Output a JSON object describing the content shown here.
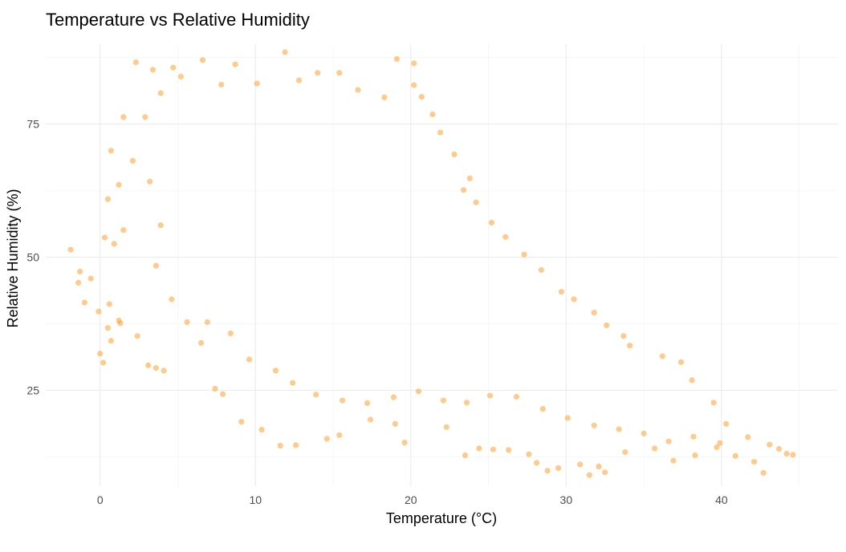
{
  "chart_data": {
    "type": "scatter",
    "title": "Temperature vs Relative Humidity",
    "xlabel": "Temperature (°C)",
    "ylabel": "Relative Humidity (%)",
    "xlim": [
      -3.5,
      47.5
    ],
    "ylim": [
      7,
      90
    ],
    "x_ticks": [
      0,
      10,
      20,
      30,
      40
    ],
    "y_ticks": [
      25,
      50,
      75
    ],
    "grid": true,
    "point_color": "#FF8C00",
    "point_opacity": 0.45,
    "series": [
      {
        "points": [
          [
            -1.9,
            51.4
          ],
          [
            -1.3,
            47.3
          ],
          [
            -1.4,
            45.2
          ],
          [
            -1.0,
            41.5
          ],
          [
            -0.6,
            46.0
          ],
          [
            -0.1,
            39.8
          ],
          [
            0.0,
            31.9
          ],
          [
            0.2,
            30.2
          ],
          [
            0.5,
            36.7
          ],
          [
            0.6,
            41.2
          ],
          [
            0.7,
            34.3
          ],
          [
            1.2,
            38.1
          ],
          [
            1.3,
            37.6
          ],
          [
            0.3,
            53.7
          ],
          [
            0.9,
            52.5
          ],
          [
            1.5,
            55.1
          ],
          [
            0.5,
            60.9
          ],
          [
            1.2,
            63.6
          ],
          [
            0.7,
            70.0
          ],
          [
            1.5,
            76.3
          ],
          [
            2.3,
            86.6
          ],
          [
            3.4,
            85.2
          ],
          [
            4.7,
            85.6
          ],
          [
            6.6,
            87.0
          ],
          [
            8.7,
            86.2
          ],
          [
            11.9,
            88.5
          ],
          [
            14.0,
            84.6
          ],
          [
            19.1,
            87.2
          ],
          [
            20.2,
            86.4
          ],
          [
            2.4,
            35.2
          ],
          [
            3.1,
            29.7
          ],
          [
            3.6,
            29.2
          ],
          [
            4.1,
            28.7
          ],
          [
            6.5,
            33.9
          ],
          [
            7.4,
            25.3
          ],
          [
            7.9,
            24.3
          ],
          [
            9.1,
            19.1
          ],
          [
            10.4,
            17.6
          ],
          [
            11.6,
            14.6
          ],
          [
            12.6,
            14.7
          ],
          [
            14.6,
            15.9
          ],
          [
            15.4,
            16.6
          ],
          [
            17.4,
            19.5
          ],
          [
            19.0,
            18.7
          ],
          [
            19.6,
            15.2
          ],
          [
            22.3,
            18.1
          ],
          [
            23.5,
            12.8
          ],
          [
            24.4,
            14.1
          ],
          [
            25.3,
            13.9
          ],
          [
            26.3,
            13.8
          ],
          [
            27.6,
            13.0
          ],
          [
            28.1,
            11.4
          ],
          [
            28.8,
            9.9
          ],
          [
            29.5,
            10.4
          ],
          [
            30.9,
            11.1
          ],
          [
            31.5,
            9.1
          ],
          [
            32.1,
            10.7
          ],
          [
            32.5,
            9.6
          ],
          [
            33.8,
            13.4
          ],
          [
            35.7,
            14.1
          ],
          [
            36.9,
            11.8
          ],
          [
            38.3,
            12.8
          ],
          [
            39.7,
            14.3
          ],
          [
            40.9,
            12.7
          ],
          [
            42.1,
            11.6
          ],
          [
            42.7,
            9.5
          ],
          [
            43.7,
            14.0
          ],
          [
            44.6,
            12.9
          ],
          [
            44.2,
            13.1
          ],
          [
            43.1,
            14.8
          ],
          [
            41.7,
            16.2
          ],
          [
            40.3,
            18.7
          ],
          [
            39.5,
            22.7
          ],
          [
            38.1,
            26.9
          ],
          [
            37.4,
            30.3
          ],
          [
            36.2,
            31.4
          ],
          [
            34.1,
            33.4
          ],
          [
            33.7,
            35.2
          ],
          [
            32.6,
            37.2
          ],
          [
            31.8,
            39.6
          ],
          [
            30.5,
            42.1
          ],
          [
            29.7,
            43.5
          ],
          [
            28.4,
            47.6
          ],
          [
            27.3,
            50.5
          ],
          [
            26.1,
            53.8
          ],
          [
            25.2,
            56.5
          ],
          [
            24.2,
            60.3
          ],
          [
            23.4,
            62.6
          ],
          [
            23.8,
            64.8
          ],
          [
            22.8,
            69.3
          ],
          [
            21.9,
            73.4
          ],
          [
            21.4,
            76.8
          ],
          [
            20.7,
            80.1
          ],
          [
            20.2,
            82.3
          ],
          [
            18.3,
            80.0
          ],
          [
            16.6,
            81.4
          ],
          [
            15.4,
            84.6
          ],
          [
            12.8,
            83.2
          ],
          [
            10.1,
            82.6
          ],
          [
            7.8,
            82.4
          ],
          [
            5.2,
            83.9
          ],
          [
            3.9,
            80.8
          ],
          [
            2.9,
            76.3
          ],
          [
            2.1,
            68.1
          ],
          [
            3.2,
            64.2
          ],
          [
            3.9,
            56.0
          ],
          [
            3.6,
            48.4
          ],
          [
            4.6,
            42.1
          ],
          [
            5.6,
            37.8
          ],
          [
            6.9,
            37.8
          ],
          [
            8.4,
            35.7
          ],
          [
            9.6,
            30.8
          ],
          [
            11.3,
            28.7
          ],
          [
            12.4,
            26.4
          ],
          [
            13.9,
            24.2
          ],
          [
            15.6,
            23.1
          ],
          [
            17.2,
            22.6
          ],
          [
            18.9,
            23.7
          ],
          [
            20.5,
            24.8
          ],
          [
            22.1,
            23.1
          ],
          [
            23.6,
            22.7
          ],
          [
            25.1,
            24.0
          ],
          [
            26.8,
            23.8
          ],
          [
            28.5,
            21.5
          ],
          [
            30.1,
            19.8
          ],
          [
            31.8,
            18.4
          ],
          [
            33.4,
            17.7
          ],
          [
            35.0,
            16.9
          ],
          [
            36.6,
            15.4
          ],
          [
            38.2,
            16.3
          ],
          [
            39.9,
            15.1
          ]
        ]
      }
    ]
  }
}
